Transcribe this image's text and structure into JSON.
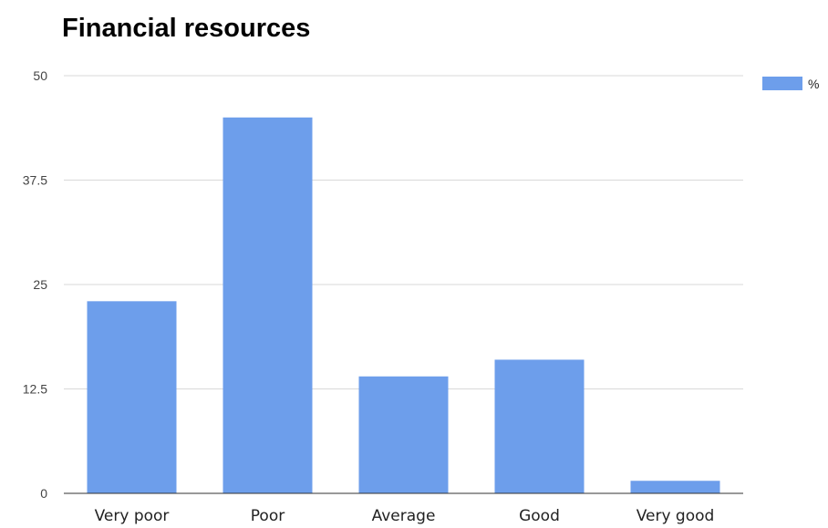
{
  "chart_data": {
    "type": "bar",
    "title": "Financial resources",
    "categories": [
      "Very poor",
      "Poor",
      "Average",
      "Good",
      "Very good"
    ],
    "series": [
      {
        "name": "%",
        "values": [
          23,
          45,
          14,
          16,
          1.5
        ]
      }
    ],
    "ylim": [
      0,
      50
    ],
    "yticks": [
      "0",
      "12.5",
      "25",
      "37.5",
      "50"
    ],
    "ytick_values": [
      0,
      12.5,
      25,
      37.5,
      50
    ],
    "grid": true,
    "legend_position": "top-right",
    "colors": {
      "bar": "#6d9eeb",
      "grid": "#d9d9d9",
      "axis": "#333333"
    }
  }
}
